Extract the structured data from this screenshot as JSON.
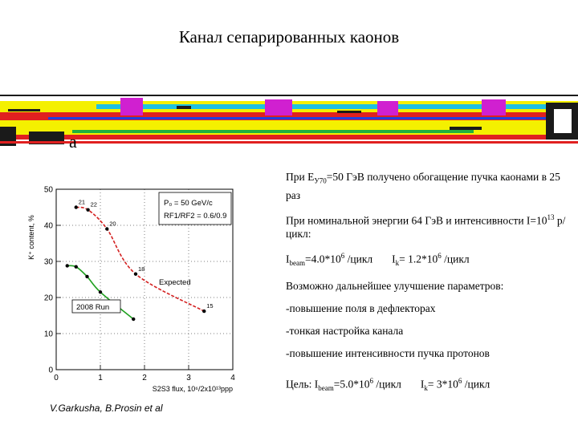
{
  "title": "Канал сепарированных каонов",
  "beamline_label": "a",
  "chart_data": {
    "type": "scatter",
    "xlabel": "S2S3 flux, 10⁶/2x10¹³ppp",
    "ylabel": "K⁺ content, %",
    "xlim": [
      0,
      4
    ],
    "ylim": [
      0,
      50
    ],
    "x_ticks": [
      "0",
      "1",
      "2",
      "3",
      "4"
    ],
    "y_ticks": [
      "0",
      "10",
      "20",
      "30",
      "40",
      "50"
    ],
    "legend": [
      "P₀ = 50 GeV/c",
      "RF1/RF2 = 0.6/0.9"
    ],
    "series": [
      {
        "name": "Expected",
        "color": "#d42020",
        "points": [
          {
            "x": 0.45,
            "y": 45.0,
            "label": "21"
          },
          {
            "x": 0.72,
            "y": 44.3,
            "label": "22"
          },
          {
            "x": 1.15,
            "y": 39.0,
            "label": "20"
          },
          {
            "x": 1.8,
            "y": 26.5,
            "label": "18"
          },
          {
            "x": 3.35,
            "y": 16.2,
            "label": "15"
          }
        ]
      },
      {
        "name": "2008 Run",
        "color": "#20a020",
        "points": [
          {
            "x": 0.25,
            "y": 28.8,
            "label": ""
          },
          {
            "x": 0.45,
            "y": 28.5,
            "label": ""
          },
          {
            "x": 0.7,
            "y": 25.8,
            "label": ""
          },
          {
            "x": 1.0,
            "y": 21.5,
            "label": ""
          },
          {
            "x": 1.75,
            "y": 14.0,
            "label": ""
          }
        ]
      }
    ]
  },
  "text": {
    "p1_a": "При E",
    "p1_sub": "У70",
    "p1_b": "=50 ГэВ получено обогащение пучка каонами в 25 раз",
    "p2_a": "При номинальной энергии 64 ГэВ и интенсивности I=10",
    "p2_sup": "13",
    "p2_b": " р/цикл:",
    "p3_a": "I",
    "p3_sub1": "beam",
    "p3_b": "=4.0*10",
    "p3_sup1": "6",
    "p3_c": " /цикл",
    "p3_d": "I",
    "p3_sub2": "k",
    "p3_e": "= 1.2*10",
    "p3_sup2": "6",
    "p3_f": " /цикл",
    "p4": "Возможно дальнейшее улучшение параметров:",
    "p5": "-повышение поля в дефлекторах",
    "p6": "-тонкая настройка канала",
    "p7": "-повышение интенсивности пучка протонов",
    "p8_a": "Цель: I",
    "p8_sub1": "beam",
    "p8_b": "=5.0*10",
    "p8_sup1": "6",
    "p8_c": " /цикл",
    "p8_d": "I",
    "p8_sub2": "k",
    "p8_e": "= 3*10",
    "p8_sup2": "6",
    "p8_f": " /цикл"
  },
  "credit": "V.Garkusha, B.Prosin et al"
}
